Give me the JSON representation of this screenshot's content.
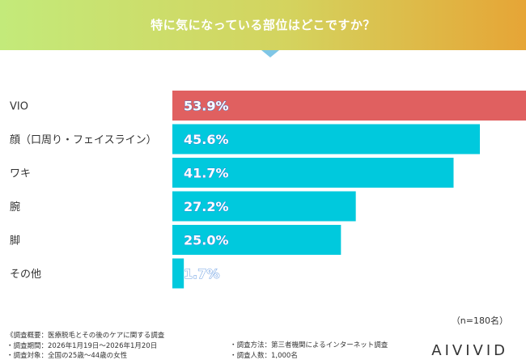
{
  "header": {
    "title": "特に気になっている部位はどこですか？"
  },
  "chart_data": {
    "type": "bar",
    "orientation": "horizontal",
    "title": "特に気になっている部位はどこですか？",
    "categories": [
      "VIO",
      "顔（口周り・フェイスライン）",
      "ワキ",
      "腕",
      "脚",
      "その他"
    ],
    "values": [
      53.9,
      45.6,
      41.7,
      27.2,
      25.0,
      1.7
    ],
    "value_labels": [
      "53.9%",
      "45.6%",
      "41.7%",
      "27.2%",
      "25.0%",
      "1.7%"
    ],
    "unit": "%",
    "colors": [
      "#e06060",
      "#00c9dd",
      "#00c9dd",
      "#00c9dd",
      "#00c9dd",
      "#00c9dd"
    ],
    "xlim": [
      0,
      60
    ],
    "grid": false,
    "legend": "none"
  },
  "sample_note": "（n=180名）",
  "footer": {
    "overview": "《調査概要：医療脱毛とその後のケアに関する調査",
    "period": "・調査期間：2026年1月19日〜2026年1月20日",
    "target": "・調査対象：全国の25歳〜44歳の女性",
    "method": "・調査方法：第三者機関によるインターネット調査",
    "respondents": "・調査人数：1,000名"
  },
  "brand": "AIVIVID"
}
